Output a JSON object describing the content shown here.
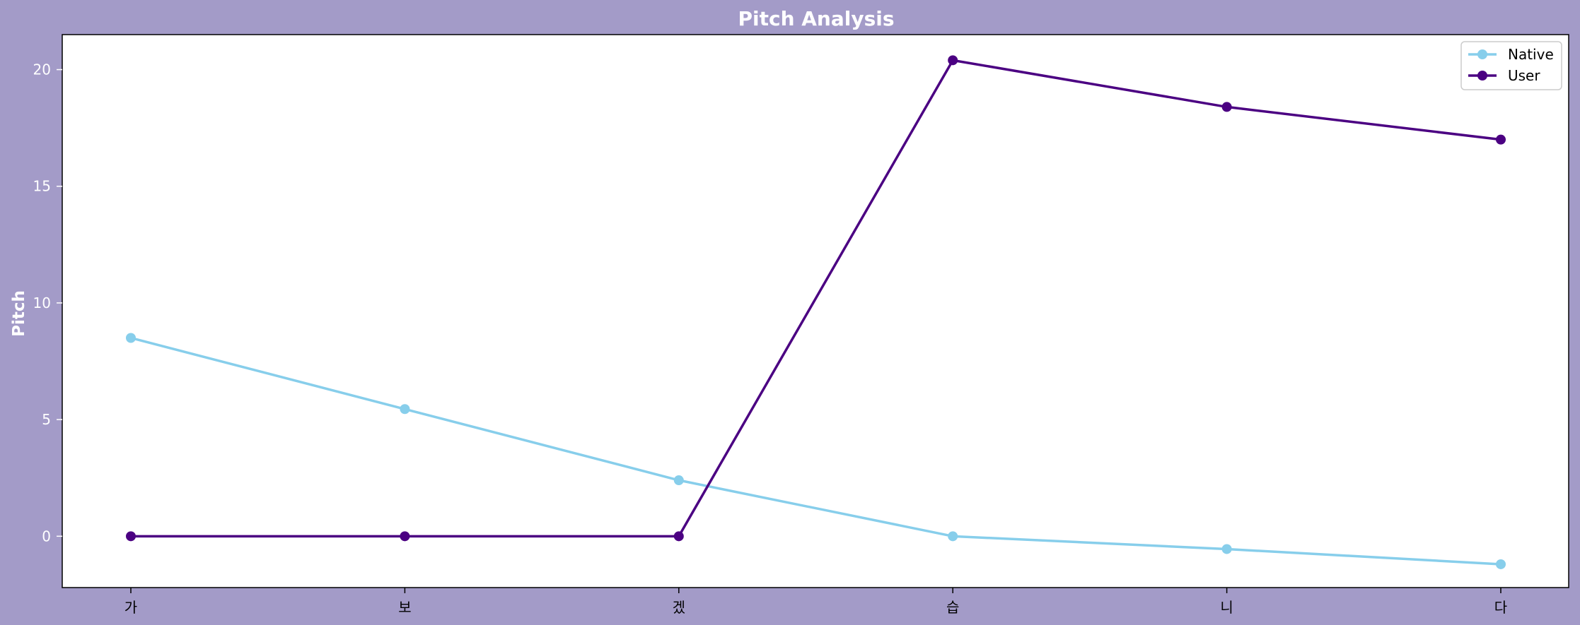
{
  "chart_data": {
    "type": "line",
    "title": "Pitch Analysis",
    "xlabel": "",
    "ylabel": "Pitch",
    "categories": [
      "가",
      "보",
      "겠",
      "습",
      "니",
      "다"
    ],
    "yticks": [
      0,
      5,
      10,
      15,
      20
    ],
    "ylim": [
      -2.2,
      21.5
    ],
    "grid": false,
    "legend": "top-right",
    "series": [
      {
        "name": "Native",
        "color": "#87ceeb",
        "values": [
          8.5,
          5.45,
          2.4,
          0.0,
          -0.55,
          -1.2
        ]
      },
      {
        "name": "User",
        "color": "#4b0082",
        "values": [
          0.0,
          0.0,
          0.0,
          20.4,
          18.4,
          17.0
        ]
      }
    ],
    "colors": {
      "background": "#a39bc8",
      "plot": "#ffffff"
    }
  }
}
